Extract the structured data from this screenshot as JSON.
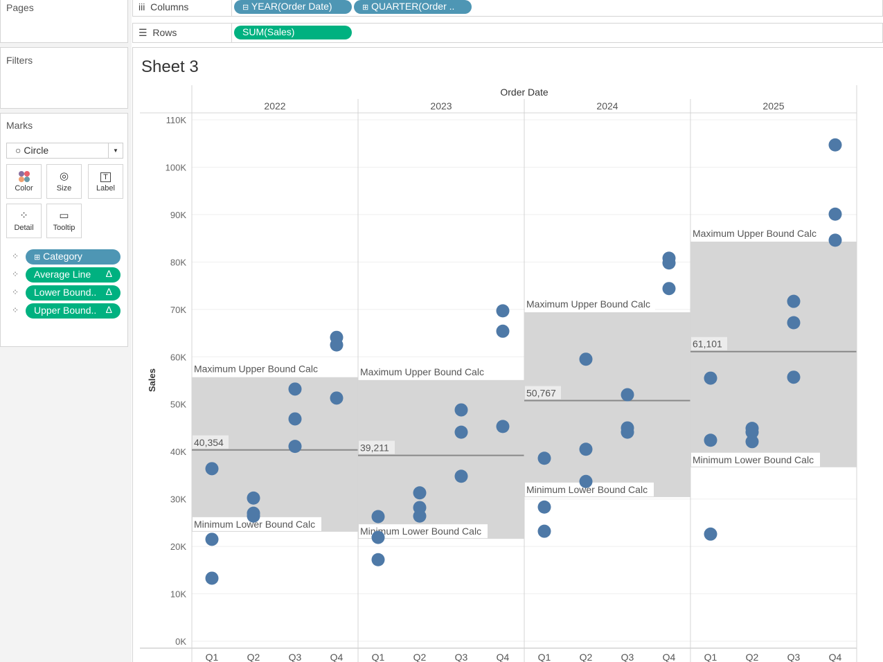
{
  "pages": {
    "title": "Pages"
  },
  "filters": {
    "title": "Filters"
  },
  "columns": {
    "label": "Columns",
    "pills": [
      "YEAR(Order Date)",
      "QUARTER(Order .."
    ]
  },
  "rows": {
    "label": "Rows",
    "pills": [
      "SUM(Sales)"
    ]
  },
  "marks": {
    "title": "Marks",
    "type": "Circle",
    "buttons": [
      "Color",
      "Size",
      "Label",
      "Detail",
      "Tooltip"
    ],
    "fields": [
      {
        "label": "Category",
        "color": "#4e96b4"
      },
      {
        "label": "Average Line",
        "color": "#00b180"
      },
      {
        "label": "Lower Bound..",
        "color": "#00b180"
      },
      {
        "label": "Upper Bound..",
        "color": "#00b180"
      }
    ]
  },
  "sheet": {
    "title": "Sheet 3",
    "column_header": "Order Date"
  },
  "chart_data": {
    "type": "scatter",
    "ylabel": "Sales",
    "ylim": [
      0,
      110000
    ],
    "yticks": [
      "0K",
      "10K",
      "20K",
      "30K",
      "40K",
      "50K",
      "60K",
      "70K",
      "80K",
      "90K",
      "100K",
      "110K"
    ],
    "years": [
      "2022",
      "2023",
      "2024",
      "2025"
    ],
    "quarters": [
      "Q1",
      "Q2",
      "Q3",
      "Q4"
    ],
    "mark_color": "#4e79a7",
    "band_color": "#d6d6d6",
    "upper_label": "Maximum Upper Bound Calc",
    "lower_label": "Minimum Lower Bound Calc",
    "panes": [
      {
        "year": "2022",
        "upper": 55700,
        "lower": 23100,
        "average": 40354,
        "average_label": "40,354",
        "points": [
          [
            36400,
            21500,
            13300
          ],
          [
            30200,
            27000,
            26400
          ],
          [
            53200,
            46900,
            41100
          ],
          [
            64100,
            62500,
            51300
          ]
        ]
      },
      {
        "year": "2023",
        "upper": 55100,
        "lower": 21600,
        "average": 39211,
        "average_label": "39,211",
        "points": [
          [
            26300,
            21900,
            17200
          ],
          [
            31300,
            28200,
            26400
          ],
          [
            48800,
            44100,
            34800
          ],
          [
            69700,
            65400,
            45300
          ]
        ]
      },
      {
        "year": "2024",
        "upper": 69400,
        "lower": 30400,
        "average": 50767,
        "average_label": "50,767",
        "points": [
          [
            38600,
            28300,
            23200
          ],
          [
            59500,
            40500,
            33700
          ],
          [
            52000,
            45000,
            44100
          ],
          [
            80800,
            79800,
            74400
          ]
        ]
      },
      {
        "year": "2025",
        "upper": 84300,
        "lower": 36700,
        "average": 61101,
        "average_label": "61,101",
        "points": [
          [
            55500,
            42400,
            22600
          ],
          [
            44900,
            44100,
            42100
          ],
          [
            71700,
            67200,
            55700
          ],
          [
            104700,
            90100,
            84600
          ]
        ]
      }
    ]
  }
}
